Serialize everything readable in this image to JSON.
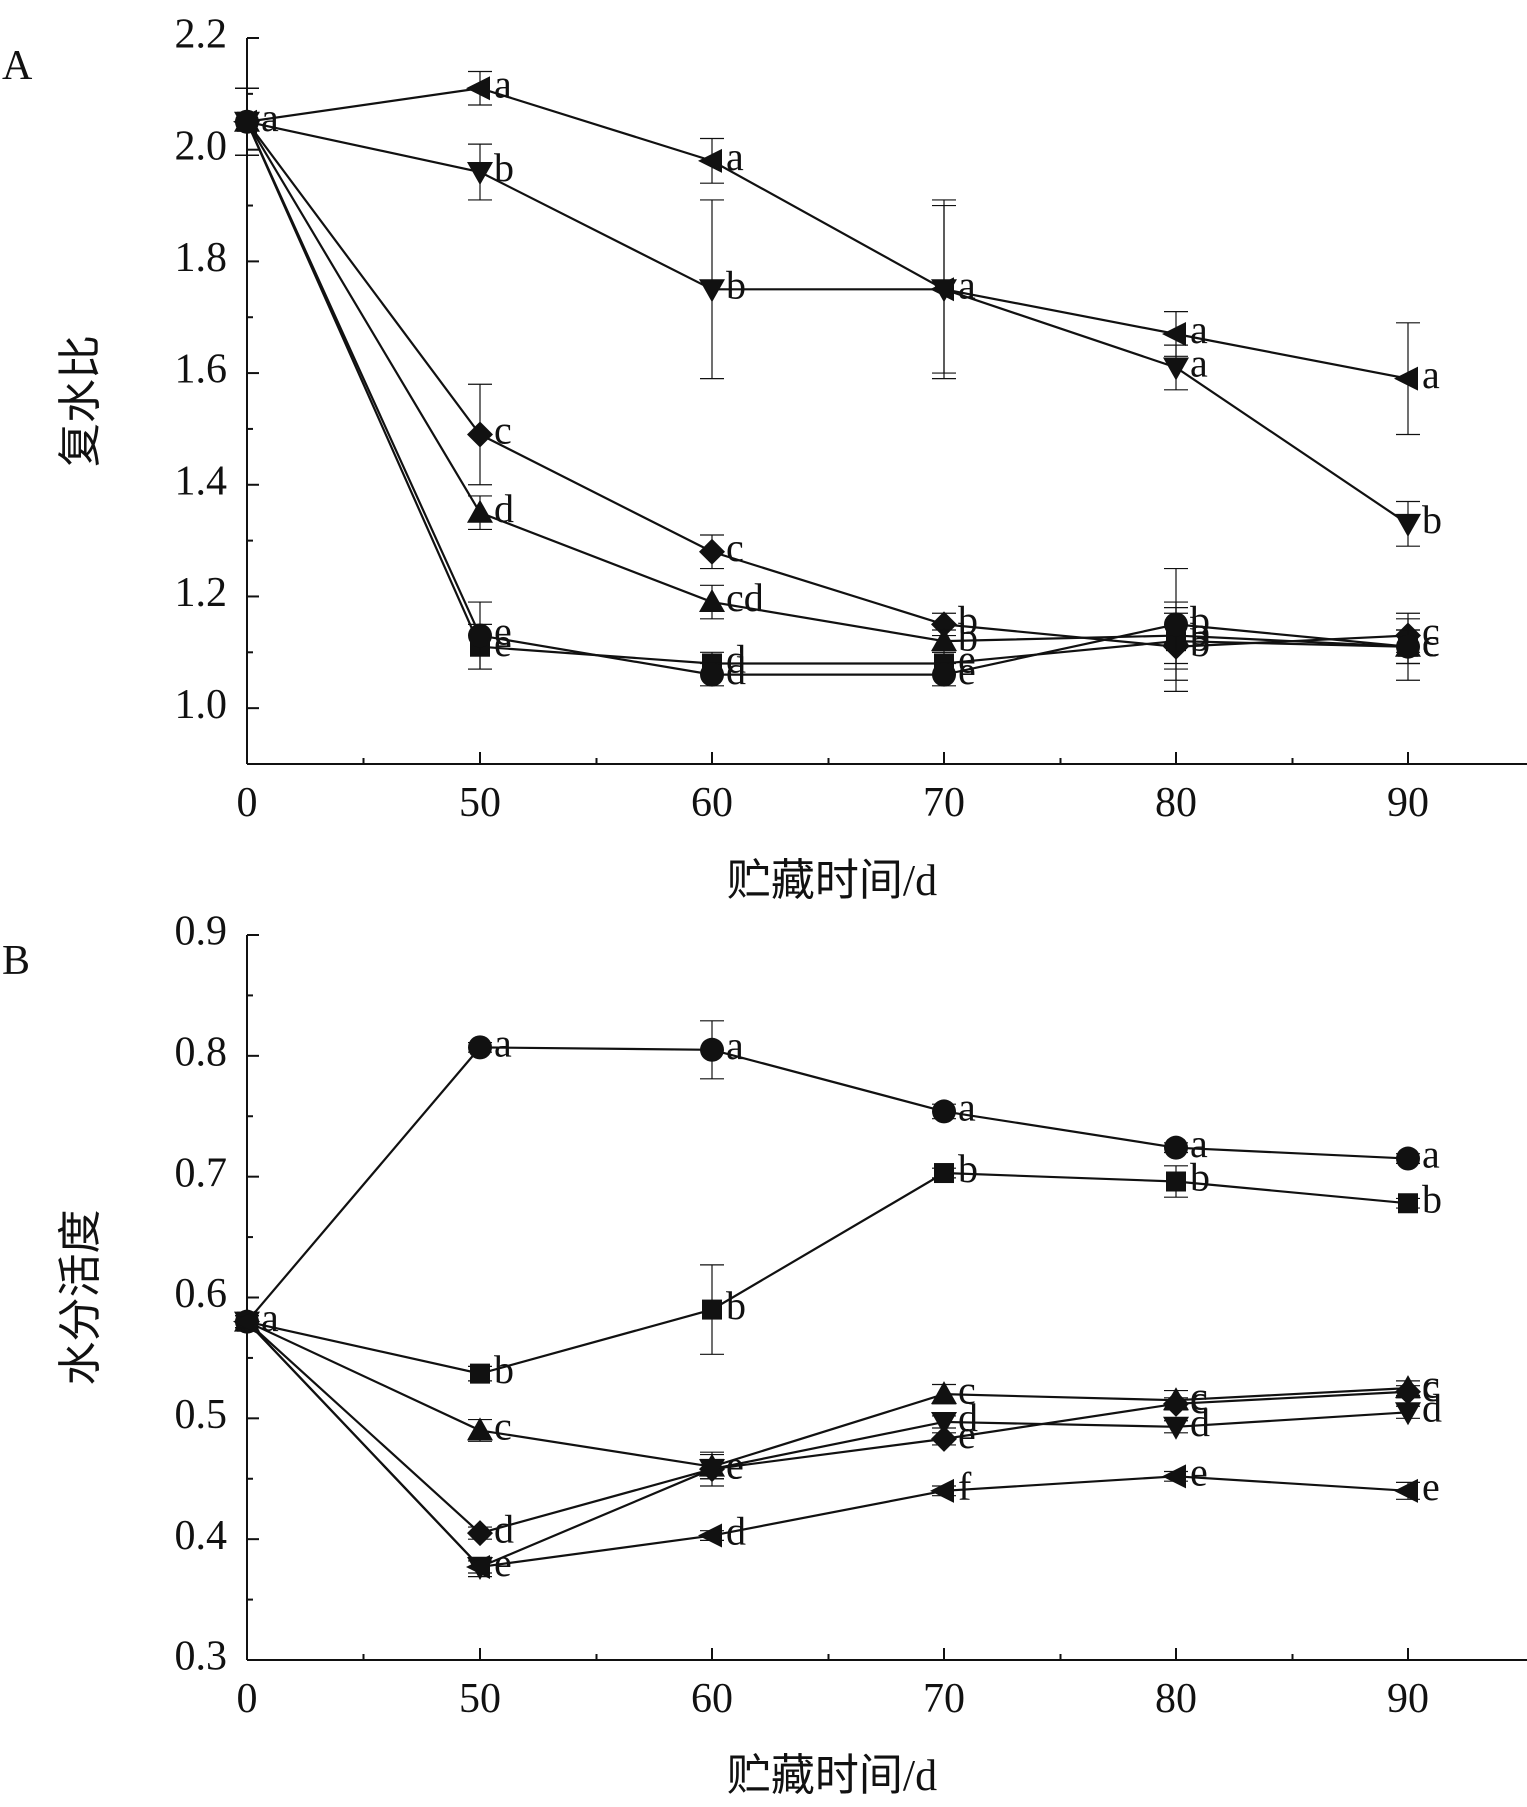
{
  "figure": {
    "background": "#ffffff",
    "ink": "#111111"
  },
  "chart_data": [
    {
      "type": "line",
      "panel_label": "A",
      "title": "",
      "xlabel": "贮藏时间/d",
      "ylabel": "复水比",
      "x_categories": [
        "0",
        "50",
        "60",
        "70",
        "80",
        "90"
      ],
      "yticks": [
        "1.0",
        "1.2",
        "1.4",
        "1.6",
        "1.8",
        "2.0",
        "2.2"
      ],
      "ylim": [
        0.9,
        2.2
      ],
      "grid": false,
      "legend": "none",
      "series": [
        {
          "marker": "triangle-left",
          "values": [
            2.05,
            2.11,
            1.98,
            1.75,
            1.67,
            1.59
          ],
          "errors": [
            0.06,
            0.03,
            0.04,
            0.15,
            0.04,
            0.1
          ],
          "labels": [
            "a",
            "a",
            "a",
            "a",
            "a",
            "a"
          ]
        },
        {
          "marker": "triangle-down",
          "values": [
            2.05,
            1.96,
            1.75,
            1.75,
            1.61,
            1.33
          ],
          "errors": [
            0.06,
            0.05,
            0.16,
            0.16,
            0.04,
            0.04
          ],
          "labels": [
            "",
            "b",
            "b",
            "",
            "a",
            "b"
          ]
        },
        {
          "marker": "diamond",
          "values": [
            2.05,
            1.49,
            1.28,
            1.15,
            1.11,
            1.13
          ],
          "errors": [
            0.06,
            0.09,
            0.03,
            0.02,
            0.08,
            0.03
          ],
          "labels": [
            "",
            "c",
            "c",
            "b",
            "b",
            "c"
          ]
        },
        {
          "marker": "triangle-up",
          "values": [
            2.05,
            1.35,
            1.19,
            1.12,
            1.13,
            1.11
          ],
          "errors": [
            0.06,
            0.03,
            0.03,
            0.02,
            0.05,
            0.03
          ],
          "labels": [
            "",
            "d",
            "cd",
            "b",
            "b",
            "c"
          ]
        },
        {
          "marker": "square",
          "values": [
            2.05,
            1.11,
            1.08,
            1.08,
            1.12,
            1.11
          ],
          "errors": [
            0.06,
            0.04,
            0.02,
            0.02,
            0.05,
            0.03
          ],
          "labels": [
            "",
            "e",
            "d",
            "e",
            "b",
            "c"
          ]
        },
        {
          "marker": "circle",
          "values": [
            2.05,
            1.13,
            1.06,
            1.06,
            1.15,
            1.11
          ],
          "errors": [
            0.06,
            0.06,
            0.02,
            0.02,
            0.1,
            0.06
          ],
          "labels": [
            "",
            "e",
            "d",
            "e",
            "b",
            "c"
          ]
        }
      ]
    },
    {
      "type": "line",
      "panel_label": "B",
      "title": "",
      "xlabel": "贮藏时间/d",
      "ylabel": "水分活度",
      "x_categories": [
        "0",
        "50",
        "60",
        "70",
        "80",
        "90"
      ],
      "yticks": [
        "0.3",
        "0.4",
        "0.5",
        "0.6",
        "0.7",
        "0.8",
        "0.9"
      ],
      "ylim": [
        0.3,
        0.9
      ],
      "grid": false,
      "legend": "none",
      "series": [
        {
          "marker": "circle",
          "values": [
            0.58,
            0.807,
            0.805,
            0.754,
            0.724,
            0.715
          ],
          "errors": [
            0.005,
            0.004,
            0.024,
            0.006,
            0.004,
            0.004
          ],
          "labels": [
            "a",
            "a",
            "a",
            "a",
            "a",
            "a"
          ]
        },
        {
          "marker": "square",
          "values": [
            0.58,
            0.537,
            0.59,
            0.703,
            0.696,
            0.678
          ],
          "errors": [
            0.005,
            0.006,
            0.037,
            0.004,
            0.013,
            0.004
          ],
          "labels": [
            "",
            "b",
            "b",
            "b",
            "b",
            "b"
          ]
        },
        {
          "marker": "triangle-up",
          "values": [
            0.58,
            0.49,
            0.46,
            0.52,
            0.515,
            0.525
          ],
          "errors": [
            0.005,
            0.009,
            0.01,
            0.008,
            0.008,
            0.006
          ],
          "labels": [
            "",
            "c",
            "",
            "c",
            "c",
            "c"
          ]
        },
        {
          "marker": "diamond",
          "values": [
            0.58,
            0.405,
            0.458,
            0.483,
            0.512,
            0.522
          ],
          "errors": [
            0.005,
            0.005,
            0.008,
            0.005,
            0.005,
            0.005
          ],
          "labels": [
            "",
            "d",
            "e",
            "e",
            "c",
            "c"
          ]
        },
        {
          "marker": "triangle-down",
          "values": [
            0.58,
            0.377,
            0.458,
            0.497,
            0.493,
            0.505
          ],
          "errors": [
            0.005,
            0.008,
            0.014,
            0.005,
            0.005,
            0.005
          ],
          "labels": [
            "",
            "e",
            "e",
            "d",
            "d",
            "d"
          ]
        },
        {
          "marker": "triangle-left",
          "values": [
            0.58,
            0.377,
            0.403,
            0.44,
            0.452,
            0.44
          ],
          "errors": [
            0.005,
            0.005,
            0.004,
            0.004,
            0.004,
            0.007
          ],
          "labels": [
            "",
            "",
            "d",
            "f",
            "e",
            "e"
          ]
        }
      ]
    }
  ]
}
